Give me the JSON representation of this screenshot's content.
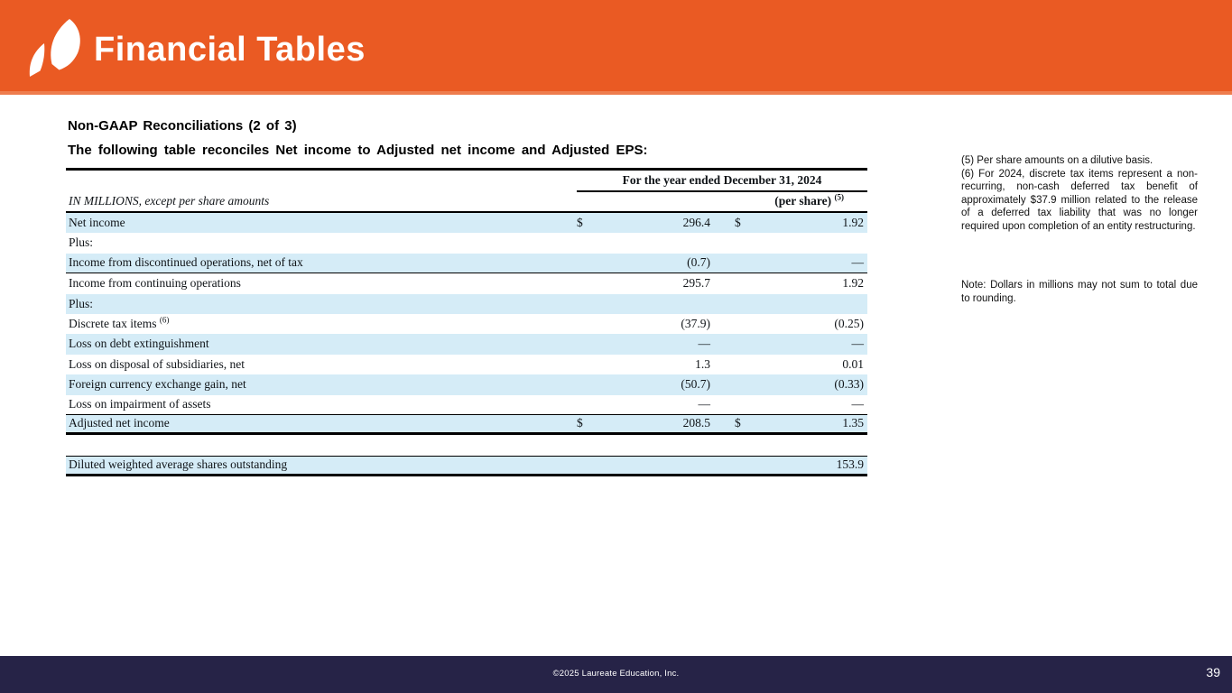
{
  "slide": {
    "title": "Financial Tables",
    "heading": "Non-GAAP Reconciliations (2 of 3)",
    "subheading": "The following table reconciles Net income to Adjusted net income and Adjusted EPS:"
  },
  "colors": {
    "accent": "#EA5A23",
    "accent_light": "#EE7D4E",
    "row_shade": "#D5ECF7",
    "footer_bg": "#262347"
  },
  "table": {
    "period_header": "For the year ended December 31, 2024",
    "caption": "IN MILLIONS, except per share amounts",
    "col2_header": "(per share) ",
    "col2_header_sup": "(5)",
    "rows": [
      {
        "label": "Net income",
        "d1": "$",
        "v1": "296.4",
        "d2": "$",
        "v2": "1.92",
        "shade": true
      },
      {
        "label": "Plus:",
        "shade": false
      },
      {
        "label": "Income from discontinued operations, net of tax",
        "v1": "(0.7)",
        "v2": "—",
        "shade": true,
        "bb": "thin"
      },
      {
        "label": "Income from continuing operations",
        "v1": "295.7",
        "v2": "1.92",
        "shade": false
      },
      {
        "label": "Plus:",
        "shade": true
      },
      {
        "label": "Discrete tax items ",
        "sup": "(6)",
        "v1": "(37.9)",
        "v2": "(0.25)",
        "shade": false
      },
      {
        "label": "Loss on debt extinguishment",
        "v1": "—",
        "v2": "—",
        "shade": true
      },
      {
        "label": "Loss on disposal of subsidiaries, net",
        "v1": "1.3",
        "v2": "0.01",
        "shade": false
      },
      {
        "label": "Foreign currency exchange gain, net",
        "v1": "(50.7)",
        "v2": "(0.33)",
        "shade": true
      },
      {
        "label": "Loss on impairment of assets",
        "v1": "—",
        "v2": "—",
        "shade": false,
        "bb": "thin"
      },
      {
        "label": "Adjusted net income",
        "d1": "$",
        "v1": "208.5",
        "d2": "$",
        "v2": "1.35",
        "shade": true,
        "bb": "thick"
      },
      {
        "spacer": true
      },
      {
        "label": "Diluted weighted average shares outstanding",
        "v2": "153.9",
        "shade": true,
        "bt": "thin",
        "bb": "thick"
      }
    ]
  },
  "footnotes": {
    "note5": "(5) Per share amounts on a dilutive basis.",
    "note6": "(6) For 2024, discrete tax items represent a non-recurring, non-cash deferred tax benefit of approximately $37.9 million related to the release of a deferred tax liability that was no longer required upon completion of an entity restructuring.",
    "rounding": "Note:  Dollars in millions may not sum to total due to rounding."
  },
  "footer": {
    "copyright": "©2025 Laureate Education, Inc.",
    "page_number": "39"
  }
}
